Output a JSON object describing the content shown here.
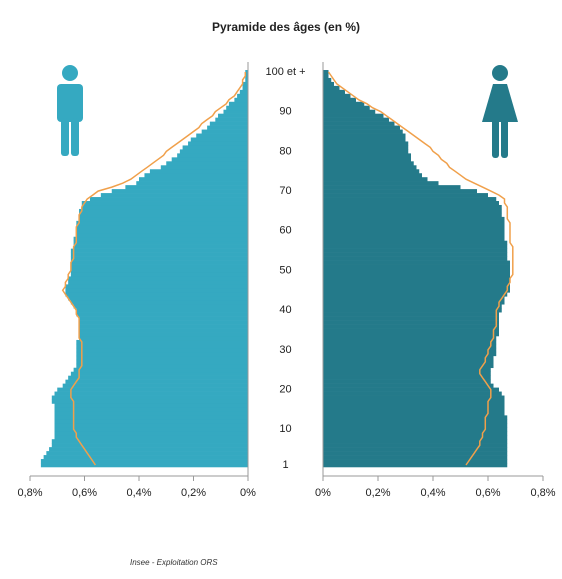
{
  "chart_data": {
    "type": "pyramid",
    "title": "Pyramide des âges (en %)",
    "source": "Insee - Exploitation ORS",
    "categories": [
      "1",
      null,
      null,
      null,
      null,
      null,
      null,
      null,
      null,
      "10",
      null,
      null,
      null,
      null,
      null,
      null,
      null,
      null,
      null,
      "20",
      null,
      null,
      null,
      null,
      null,
      null,
      null,
      null,
      null,
      "30",
      null,
      null,
      null,
      null,
      null,
      null,
      null,
      null,
      null,
      "40",
      null,
      null,
      null,
      null,
      null,
      null,
      null,
      null,
      null,
      "50",
      null,
      null,
      null,
      null,
      null,
      null,
      null,
      null,
      null,
      "60",
      null,
      null,
      null,
      null,
      null,
      null,
      null,
      null,
      null,
      "70",
      null,
      null,
      null,
      null,
      null,
      null,
      null,
      null,
      null,
      "80",
      null,
      null,
      null,
      null,
      null,
      null,
      null,
      null,
      null,
      "90",
      null,
      null,
      null,
      null,
      null,
      null,
      null,
      null,
      null,
      "100 et +"
    ],
    "xlim": [
      0,
      0.8
    ],
    "xticks": [
      {
        "value": 0,
        "label": "0%"
      },
      {
        "value": 0.2,
        "label": "0,2%"
      },
      {
        "value": 0.4,
        "label": "0,4%"
      },
      {
        "value": 0.6,
        "label": "0,6%"
      },
      {
        "value": 0.8,
        "label": "0,8%"
      }
    ],
    "series": [
      {
        "side": "left",
        "mark": "bar",
        "color": "#35a9c1",
        "values": [
          0.76,
          0.76,
          0.75,
          0.74,
          0.73,
          0.72,
          0.72,
          0.71,
          0.71,
          0.71,
          0.71,
          0.71,
          0.71,
          0.71,
          0.71,
          0.71,
          0.72,
          0.72,
          0.71,
          0.7,
          0.68,
          0.67,
          0.66,
          0.65,
          0.64,
          0.63,
          0.63,
          0.63,
          0.63,
          0.63,
          0.63,
          0.63,
          0.62,
          0.62,
          0.62,
          0.62,
          0.62,
          0.62,
          0.63,
          0.63,
          0.64,
          0.65,
          0.66,
          0.67,
          0.67,
          0.67,
          0.66,
          0.66,
          0.65,
          0.65,
          0.65,
          0.65,
          0.65,
          0.65,
          0.65,
          0.64,
          0.64,
          0.64,
          0.63,
          0.63,
          0.63,
          0.63,
          0.62,
          0.62,
          0.62,
          0.61,
          0.61,
          0.58,
          0.54,
          0.5,
          0.45,
          0.41,
          0.4,
          0.38,
          0.36,
          0.32,
          0.3,
          0.28,
          0.26,
          0.25,
          0.24,
          0.22,
          0.21,
          0.19,
          0.17,
          0.15,
          0.14,
          0.12,
          0.11,
          0.09,
          0.08,
          0.07,
          0.05,
          0.04,
          0.03,
          0.02,
          0.02,
          0.01,
          0.01,
          0.01
        ]
      },
      {
        "side": "left",
        "mark": "line",
        "color": "#f0a04b",
        "values": [
          0.56,
          0.57,
          0.58,
          0.59,
          0.6,
          0.61,
          0.62,
          0.63,
          0.63,
          0.64,
          0.64,
          0.64,
          0.64,
          0.64,
          0.64,
          0.64,
          0.64,
          0.65,
          0.65,
          0.65,
          0.64,
          0.63,
          0.62,
          0.62,
          0.62,
          0.61,
          0.61,
          0.61,
          0.61,
          0.61,
          0.61,
          0.61,
          0.62,
          0.62,
          0.62,
          0.62,
          0.62,
          0.62,
          0.63,
          0.63,
          0.64,
          0.65,
          0.66,
          0.67,
          0.68,
          0.67,
          0.67,
          0.66,
          0.66,
          0.65,
          0.65,
          0.65,
          0.64,
          0.64,
          0.64,
          0.64,
          0.63,
          0.63,
          0.63,
          0.63,
          0.63,
          0.62,
          0.62,
          0.62,
          0.61,
          0.61,
          0.6,
          0.59,
          0.57,
          0.55,
          0.5,
          0.46,
          0.43,
          0.41,
          0.39,
          0.37,
          0.35,
          0.33,
          0.31,
          0.3,
          0.28,
          0.26,
          0.24,
          0.22,
          0.2,
          0.18,
          0.17,
          0.15,
          0.13,
          0.12,
          0.1,
          0.08,
          0.07,
          0.05,
          0.04,
          0.03,
          0.02,
          0.02,
          0.01,
          0.01
        ]
      },
      {
        "side": "right",
        "mark": "bar",
        "color": "#247a8a",
        "values": [
          0.67,
          0.67,
          0.67,
          0.67,
          0.67,
          0.67,
          0.67,
          0.67,
          0.67,
          0.67,
          0.67,
          0.67,
          0.67,
          0.66,
          0.66,
          0.66,
          0.66,
          0.66,
          0.65,
          0.64,
          0.62,
          0.61,
          0.61,
          0.61,
          0.61,
          0.62,
          0.62,
          0.62,
          0.63,
          0.63,
          0.63,
          0.63,
          0.63,
          0.64,
          0.64,
          0.64,
          0.64,
          0.64,
          0.64,
          0.65,
          0.65,
          0.66,
          0.66,
          0.67,
          0.68,
          0.68,
          0.68,
          0.68,
          0.68,
          0.68,
          0.68,
          0.68,
          0.67,
          0.67,
          0.67,
          0.67,
          0.67,
          0.66,
          0.66,
          0.66,
          0.66,
          0.66,
          0.66,
          0.65,
          0.65,
          0.65,
          0.64,
          0.63,
          0.6,
          0.56,
          0.5,
          0.42,
          0.38,
          0.36,
          0.35,
          0.34,
          0.33,
          0.32,
          0.32,
          0.31,
          0.31,
          0.31,
          0.3,
          0.3,
          0.29,
          0.28,
          0.26,
          0.24,
          0.22,
          0.19,
          0.17,
          0.15,
          0.12,
          0.1,
          0.08,
          0.06,
          0.04,
          0.03,
          0.02,
          0.02
        ]
      },
      {
        "side": "right",
        "mark": "line",
        "color": "#f0a04b",
        "values": [
          0.52,
          0.53,
          0.54,
          0.55,
          0.56,
          0.57,
          0.57,
          0.58,
          0.58,
          0.59,
          0.59,
          0.59,
          0.59,
          0.6,
          0.6,
          0.6,
          0.6,
          0.61,
          0.61,
          0.61,
          0.6,
          0.59,
          0.58,
          0.57,
          0.57,
          0.58,
          0.59,
          0.59,
          0.6,
          0.6,
          0.61,
          0.61,
          0.62,
          0.62,
          0.62,
          0.63,
          0.63,
          0.63,
          0.63,
          0.63,
          0.64,
          0.64,
          0.65,
          0.66,
          0.67,
          0.67,
          0.68,
          0.68,
          0.69,
          0.69,
          0.69,
          0.69,
          0.69,
          0.69,
          0.69,
          0.69,
          0.68,
          0.68,
          0.68,
          0.68,
          0.68,
          0.68,
          0.67,
          0.67,
          0.67,
          0.67,
          0.66,
          0.66,
          0.64,
          0.61,
          0.58,
          0.55,
          0.52,
          0.5,
          0.48,
          0.46,
          0.45,
          0.43,
          0.42,
          0.4,
          0.39,
          0.37,
          0.35,
          0.33,
          0.31,
          0.29,
          0.27,
          0.25,
          0.23,
          0.21,
          0.18,
          0.16,
          0.13,
          0.11,
          0.09,
          0.07,
          0.05,
          0.04,
          0.03,
          0.02
        ]
      }
    ]
  }
}
